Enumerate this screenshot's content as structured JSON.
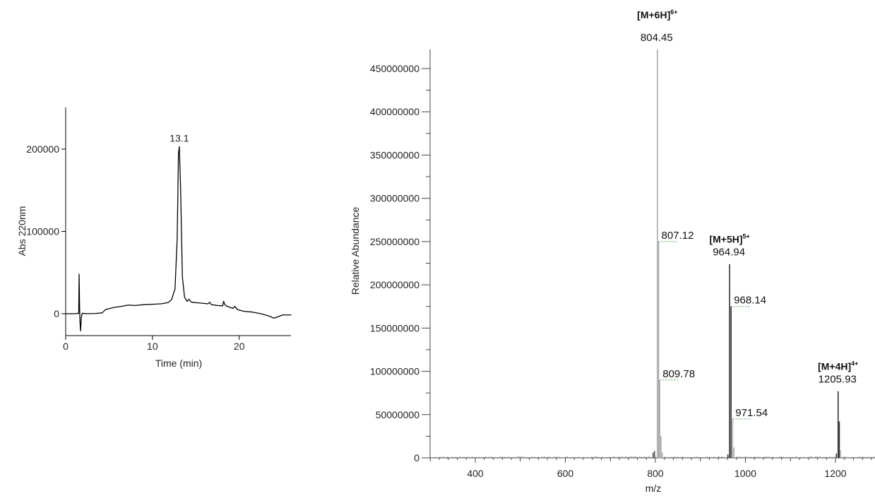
{
  "chart_data": [
    {
      "type": "line",
      "xlabel": "Time (min)",
      "ylabel": "Abs 220nm",
      "xlim": [
        0,
        26
      ],
      "ylim": [
        -25000,
        250000
      ],
      "xticks": [
        0,
        10,
        20
      ],
      "yticks": [
        0,
        100000,
        200000
      ],
      "grid": false,
      "annotations": [
        {
          "x": 13.1,
          "y": 203000,
          "text": "13.1"
        }
      ],
      "series": [
        {
          "color": "#000000",
          "points": [
            [
              0,
              0
            ],
            [
              1.0,
              0
            ],
            [
              1.5,
              500
            ],
            [
              1.55,
              48000
            ],
            [
              1.6,
              10000
            ],
            [
              1.65,
              -10000
            ],
            [
              1.72,
              -21000
            ],
            [
              1.8,
              -5000
            ],
            [
              1.9,
              500
            ],
            [
              2.5,
              0
            ],
            [
              3.5,
              300
            ],
            [
              4.2,
              1000
            ],
            [
              4.6,
              5000
            ],
            [
              5.5,
              7500
            ],
            [
              6.5,
              9000
            ],
            [
              7.2,
              10500
            ],
            [
              8.0,
              10000
            ],
            [
              9.0,
              11000
            ],
            [
              10.0,
              11500
            ],
            [
              11.0,
              12000
            ],
            [
              11.8,
              13500
            ],
            [
              12.2,
              17000
            ],
            [
              12.6,
              30000
            ],
            [
              12.85,
              90000
            ],
            [
              13.0,
              195000
            ],
            [
              13.1,
              203000
            ],
            [
              13.25,
              150000
            ],
            [
              13.45,
              45000
            ],
            [
              13.7,
              20000
            ],
            [
              14.0,
              15000
            ],
            [
              14.2,
              17500
            ],
            [
              14.5,
              14000
            ],
            [
              15.5,
              13000
            ],
            [
              16.4,
              12000
            ],
            [
              16.6,
              14000
            ],
            [
              16.8,
              11000
            ],
            [
              17.5,
              10000
            ],
            [
              18.1,
              9500
            ],
            [
              18.2,
              15000
            ],
            [
              18.35,
              11000
            ],
            [
              18.6,
              9000
            ],
            [
              19.0,
              7500
            ],
            [
              19.3,
              6500
            ],
            [
              19.5,
              9000
            ],
            [
              19.8,
              5000
            ],
            [
              20.5,
              3000
            ],
            [
              21.5,
              2000
            ],
            [
              22.5,
              0
            ],
            [
              23.5,
              -3000
            ],
            [
              24.0,
              -5500
            ],
            [
              24.5,
              -3500
            ],
            [
              25.0,
              -1500
            ],
            [
              26.0,
              -1500
            ]
          ]
        }
      ]
    },
    {
      "type": "bar",
      "xlabel": "m/z",
      "ylabel": "Relative Abundance",
      "xlim": [
        300,
        1300
      ],
      "ylim": [
        0,
        480000000
      ],
      "xticks": [
        400,
        600,
        800,
        1000,
        1200
      ],
      "yticks": [
        0,
        50000000,
        100000000,
        150000000,
        200000000,
        250000000,
        300000000,
        350000000,
        400000000,
        450000000
      ],
      "grid": false,
      "peaks": [
        {
          "mz": 795.0,
          "intensity": 6000000,
          "color": "#555555"
        },
        {
          "mz": 798.0,
          "intensity": 8000000,
          "color": "#555555"
        },
        {
          "mz": 804.45,
          "intensity": 472000000,
          "color": "#aaaaaa"
        },
        {
          "mz": 807.12,
          "intensity": 250000000,
          "color": "#aaaaaa"
        },
        {
          "mz": 809.78,
          "intensity": 90000000,
          "color": "#aaaaaa"
        },
        {
          "mz": 812.5,
          "intensity": 25000000,
          "color": "#aaaaaa"
        },
        {
          "mz": 815.0,
          "intensity": 6000000,
          "color": "#aaaaaa"
        },
        {
          "mz": 961.0,
          "intensity": 4000000,
          "color": "#333333"
        },
        {
          "mz": 964.94,
          "intensity": 224000000,
          "color": "#333333"
        },
        {
          "mz": 968.14,
          "intensity": 175000000,
          "color": "#333333"
        },
        {
          "mz": 971.54,
          "intensity": 45000000,
          "color": "#aaaaaa"
        },
        {
          "mz": 974.5,
          "intensity": 12000000,
          "color": "#aaaaaa"
        },
        {
          "mz": 1202.0,
          "intensity": 5000000,
          "color": "#333333"
        },
        {
          "mz": 1205.93,
          "intensity": 77000000,
          "color": "#333333"
        },
        {
          "mz": 1208.5,
          "intensity": 42000000,
          "color": "#333333"
        },
        {
          "mz": 1211.0,
          "intensity": 9000000,
          "color": "#aaaaaa"
        }
      ],
      "peak_labels": [
        {
          "mz": 804.45,
          "text": "804.45",
          "ion": "[M+6H]",
          "charge": "6+"
        },
        {
          "mz": 807.12,
          "text": "807.12"
        },
        {
          "mz": 809.78,
          "text": "809.78"
        },
        {
          "mz": 964.94,
          "text": "964.94",
          "ion": "[M+5H]",
          "charge": "5+"
        },
        {
          "mz": 968.14,
          "text": "968.14"
        },
        {
          "mz": 971.54,
          "text": "971.54"
        },
        {
          "mz": 1205.93,
          "text": "1205.93",
          "ion": "[M+4H]",
          "charge": "4+"
        }
      ]
    }
  ]
}
